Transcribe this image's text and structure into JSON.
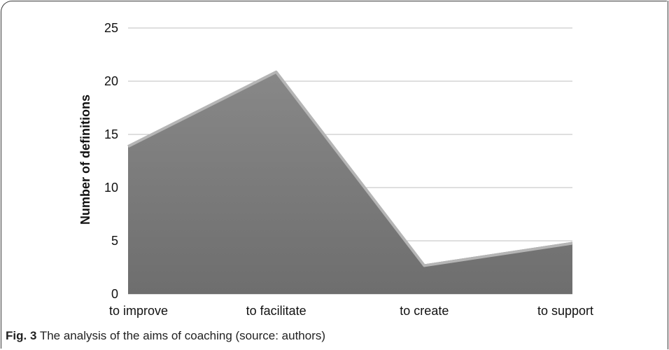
{
  "chart_data": {
    "type": "area",
    "categories": [
      "to improve",
      "to facilitate",
      "to create",
      "to support"
    ],
    "values": [
      14,
      21,
      2.8,
      4.9
    ],
    "ylabel": "Number of definitions",
    "xlabel": "",
    "ylim": [
      0,
      25
    ],
    "yticks": [
      0,
      5,
      10,
      15,
      20,
      25
    ],
    "grid": true,
    "legend": "none",
    "colors": {
      "area_fill": "#7d7d7d",
      "area_edge": "#b5b5b5",
      "grid": "#bfbfbf"
    }
  },
  "caption": {
    "label": "Fig. 3",
    "text": " The analysis of the aims of coaching (source: authors)"
  }
}
